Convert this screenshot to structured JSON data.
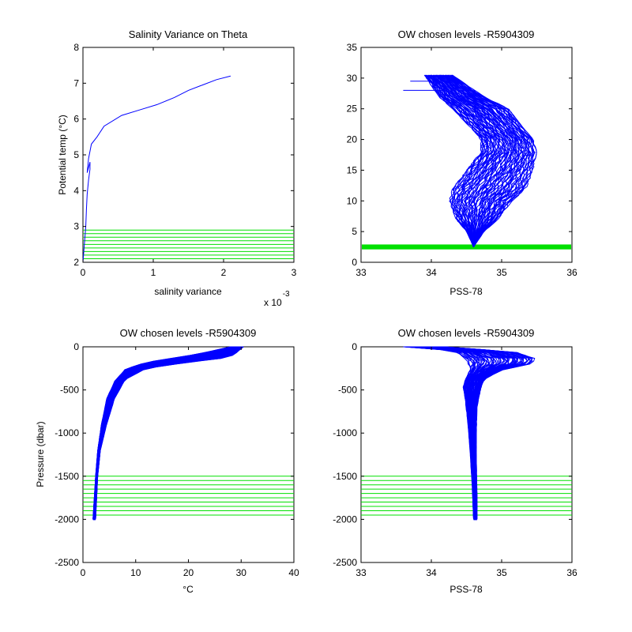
{
  "colors": {
    "profile": "#0000ff",
    "levels": "#00e000",
    "axes": "#000000"
  },
  "chart_data": [
    {
      "id": "salvar",
      "type": "line",
      "title": "Salinity Variance on Theta",
      "xlabel": "salinity variance",
      "ylabel": "Potential temp (°C)",
      "x_exponent_label": "x 10",
      "x_exponent": "-3",
      "xlim": [
        0,
        3
      ],
      "ylim": [
        2,
        8
      ],
      "xticks": [
        0,
        1,
        2,
        3
      ],
      "yticks": [
        2,
        3,
        4,
        5,
        6,
        7,
        8
      ],
      "x_scale": 0.001,
      "series": [
        {
          "x": [
            0.0,
            0.02,
            0.04,
            0.05,
            0.06,
            0.07,
            0.08,
            0.1,
            0.1,
            0.06,
            0.08,
            0.1,
            0.12,
            0.2,
            0.3,
            0.55,
            0.8,
            1.05,
            1.3,
            1.5,
            1.7,
            1.9,
            2.1
          ],
          "y": [
            2.0,
            2.5,
            3.0,
            3.5,
            3.9,
            4.1,
            4.3,
            4.6,
            4.8,
            4.5,
            4.9,
            5.1,
            5.3,
            5.5,
            5.8,
            6.1,
            6.25,
            6.4,
            6.6,
            6.8,
            6.95,
            7.1,
            7.2
          ]
        }
      ],
      "levels": [
        2.1,
        2.2,
        2.3,
        2.4,
        2.5,
        2.6,
        2.7,
        2.8,
        2.9
      ]
    },
    {
      "id": "ts",
      "type": "line",
      "title": "OW chosen levels -R5904309",
      "xlabel": "PSS-78",
      "ylabel": "",
      "xlim": [
        33,
        36
      ],
      "ylim": [
        0,
        35
      ],
      "xticks": [
        33,
        34,
        35,
        36
      ],
      "yticks": [
        0,
        5,
        10,
        15,
        20,
        25,
        30,
        35
      ],
      "band": [
        2.1,
        2.9
      ],
      "envelope": {
        "left": {
          "x": [
            34.6,
            34.5,
            34.35,
            34.25,
            34.3,
            34.5,
            34.7,
            34.7,
            34.55,
            34.3,
            34.1,
            33.9
          ],
          "y": [
            2.5,
            5,
            7,
            10,
            12,
            15,
            18,
            20,
            22,
            25,
            27,
            30.5
          ]
        },
        "right": {
          "x": [
            34.6,
            34.75,
            34.95,
            35.15,
            35.35,
            35.45,
            35.5,
            35.45,
            35.3,
            35.1,
            34.75,
            34.3
          ],
          "y": [
            2.5,
            5,
            7,
            10,
            12,
            15,
            18,
            20,
            22,
            25,
            27,
            30.5
          ]
        }
      },
      "outliers": [
        {
          "x": [
            33.6,
            34.15
          ],
          "y": [
            28.0,
            28.0
          ]
        },
        {
          "x": [
            33.7,
            34.2
          ],
          "y": [
            29.5,
            29.5
          ]
        }
      ]
    },
    {
      "id": "temp_pres",
      "type": "line",
      "title": "OW chosen levels -R5904309",
      "xlabel": "°C",
      "ylabel": "Pressure (dbar)",
      "xlim": [
        0,
        40
      ],
      "ylim": [
        -2500,
        0
      ],
      "xticks": [
        0,
        10,
        20,
        30,
        40
      ],
      "yticks": [
        -2500,
        -2000,
        -1500,
        -1000,
        -500,
        0
      ],
      "levels": [
        -1500,
        -1550,
        -1600,
        -1650,
        -1700,
        -1750,
        -1800,
        -1850,
        -1900,
        -1950
      ],
      "envelope": {
        "left": {
          "x": [
            28,
            22,
            12,
            8,
            6,
            4.5,
            3.5,
            2.8,
            2.4,
            2.1,
            1.9
          ],
          "y": [
            0,
            -80,
            -180,
            -260,
            -400,
            -600,
            -900,
            -1200,
            -1500,
            -1800,
            -2000
          ]
        },
        "right": {
          "x": [
            30.5,
            29.5,
            28,
            20,
            12,
            8,
            6,
            4.5,
            3.3,
            2.8,
            2.4
          ],
          "y": [
            0,
            -50,
            -120,
            -180,
            -250,
            -380,
            -600,
            -900,
            -1200,
            -1500,
            -2000
          ]
        }
      }
    },
    {
      "id": "sal_pres",
      "type": "line",
      "title": "OW chosen levels -R5904309",
      "xlabel": "PSS-78",
      "ylabel": "",
      "xlim": [
        33,
        36
      ],
      "ylim": [
        -2500,
        0
      ],
      "xticks": [
        33,
        34,
        35,
        36
      ],
      "yticks": [
        -2500,
        -2000,
        -1500,
        -1000,
        -500,
        0
      ],
      "levels": [
        -1500,
        -1550,
        -1600,
        -1650,
        -1700,
        -1750,
        -1800,
        -1850,
        -1900,
        -1950
      ],
      "envelope": {
        "left": {
          "x": [
            33.6,
            34.0,
            34.35,
            34.5,
            34.55,
            34.5,
            34.45,
            34.48,
            34.52,
            34.55,
            34.58,
            34.6
          ],
          "y": [
            0,
            -20,
            -60,
            -150,
            -260,
            -350,
            -450,
            -600,
            -900,
            -1200,
            -1600,
            -2000
          ]
        },
        "right": {
          "x": [
            34.2,
            35.2,
            35.5,
            35.4,
            35.0,
            34.75,
            34.7,
            34.65,
            34.64,
            34.64,
            34.65,
            34.65
          ],
          "y": [
            0,
            -60,
            -140,
            -200,
            -270,
            -380,
            -500,
            -700,
            -1000,
            -1300,
            -1700,
            -2000
          ]
        }
      }
    }
  ]
}
